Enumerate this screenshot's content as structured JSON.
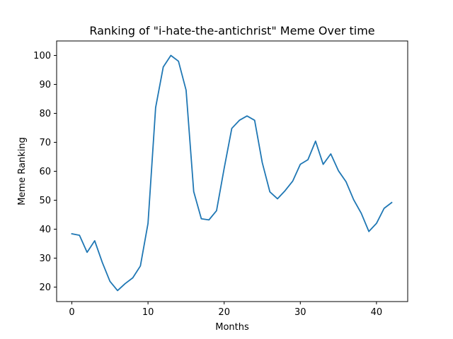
{
  "chart_data": {
    "type": "line",
    "title": "Ranking of \"i-hate-the-antichrist\" Meme Over time",
    "xlabel": "Months",
    "ylabel": "Meme Ranking",
    "xlim": [
      -2,
      44.1
    ],
    "ylim": [
      15,
      105
    ],
    "xticks": [
      0,
      10,
      20,
      30,
      40
    ],
    "yticks": [
      20,
      30,
      40,
      50,
      60,
      70,
      80,
      90,
      100
    ],
    "grid": false,
    "legend": "none",
    "series": [
      {
        "color": "#1f77b4",
        "x": [
          0,
          1,
          2,
          3,
          4,
          5,
          6,
          7,
          8,
          9,
          10,
          11,
          12,
          13,
          14,
          15,
          16,
          17,
          18,
          19,
          20,
          21,
          22,
          23,
          24,
          25,
          26,
          27,
          28,
          29,
          30,
          31,
          32,
          33,
          34,
          35,
          36,
          37,
          38,
          39,
          40,
          41,
          42
        ],
        "values": [
          38.4,
          37.9,
          32.0,
          36.0,
          28.5,
          22.0,
          18.8,
          21.2,
          23.2,
          27.3,
          42.0,
          82.0,
          96.0,
          100.0,
          98.0,
          88.0,
          53.0,
          43.6,
          43.2,
          46.4,
          61.0,
          74.8,
          77.6,
          79.1,
          77.6,
          63.0,
          52.9,
          50.5,
          53.3,
          56.6,
          62.4,
          64.0,
          70.4,
          62.4,
          66.0,
          60.2,
          56.4,
          50.2,
          45.5,
          39.2,
          42.0,
          47.2,
          49.2
        ]
      }
    ]
  }
}
